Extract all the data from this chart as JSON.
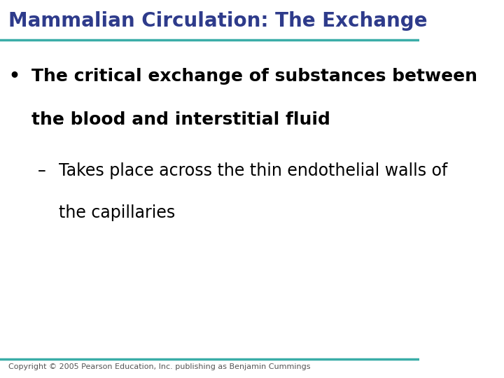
{
  "title": "Mammalian Circulation: The Exchange",
  "title_color": "#2E3B8B",
  "title_fontsize": 20,
  "title_bold": true,
  "line_color": "#3AADA8",
  "line_width": 2.5,
  "background_color": "#FFFFFF",
  "bullet_text_line1": "The critical exchange of substances between",
  "bullet_text_line2": "the blood and interstitial fluid",
  "bullet_fontsize": 18,
  "bullet_color": "#000000",
  "bullet_bold": true,
  "bullet_symbol": "•",
  "sub_bullet_text_line1": "Takes place across the thin endothelial walls of",
  "sub_bullet_text_line2": "the capillaries",
  "sub_bullet_fontsize": 17,
  "sub_bullet_color": "#000000",
  "sub_bullet_symbol": "–",
  "copyright_text": "Copyright © 2005 Pearson Education, Inc. publishing as Benjamin Cummings",
  "copyright_fontsize": 8,
  "copyright_color": "#555555"
}
